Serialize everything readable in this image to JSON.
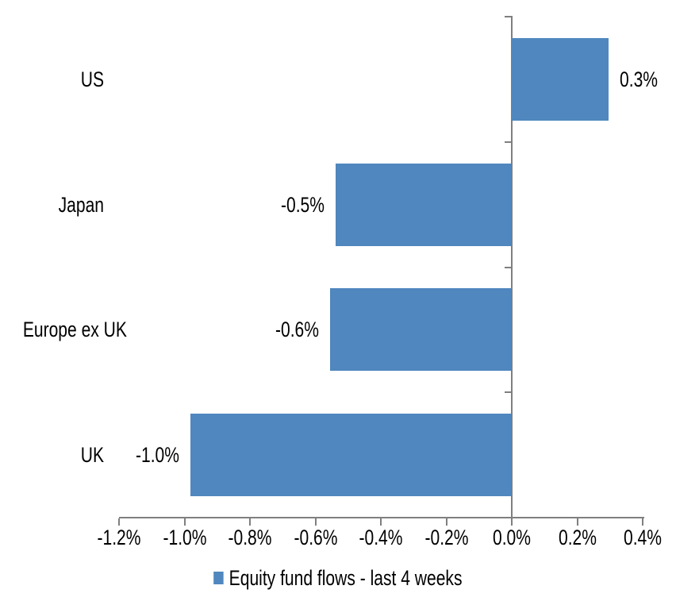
{
  "chart_data": {
    "type": "bar",
    "orientation": "horizontal",
    "title": "",
    "categories": [
      "US",
      "Japan",
      "Europe ex UK",
      "UK"
    ],
    "values": [
      0.3,
      -0.5,
      -0.6,
      -1.0
    ],
    "values_measured": [
      0.296,
      -0.538,
      -0.555,
      -0.982
    ],
    "data_labels": [
      "0.3%",
      "-0.5%",
      "-0.6%",
      "-1.0%"
    ],
    "unit": "%",
    "xlim": [
      -1.2,
      0.4
    ],
    "x_tick_values": [
      -1.2,
      -1.0,
      -0.8,
      -0.6,
      -0.4,
      -0.2,
      0.0,
      0.2,
      0.4
    ],
    "x_tick_labels": [
      "-1.2%",
      "-1.0%",
      "-0.8%",
      "-0.6%",
      "-0.4%",
      "-0.2%",
      "0.0%",
      "0.2%",
      "0.4%"
    ],
    "grid": false,
    "legend": {
      "position": "bottom-center",
      "label": "Equity fund flows - last 4 weeks"
    },
    "colors": {
      "bar": "#4F87BE",
      "axis": "#7F7F7F",
      "text": "#000000",
      "background": "#FFFFFF"
    }
  }
}
